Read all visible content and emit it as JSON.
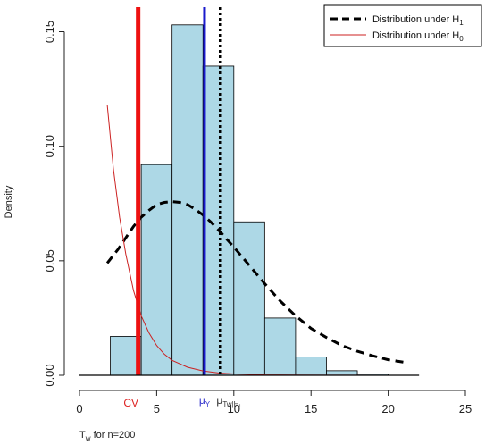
{
  "chart_data": {
    "type": "histogram",
    "xlabel": "T",
    "xlabel_sub": "w",
    "xlabel_rest": " for n=200",
    "ylabel": "Density",
    "xlim": [
      0,
      25
    ],
    "ylim": [
      0,
      0.16
    ],
    "x_ticks": [
      0,
      5,
      10,
      15,
      20,
      25
    ],
    "x_tick_labels": [
      "0",
      "5",
      "10",
      "15",
      "20",
      "25"
    ],
    "y_ticks": [
      0.0,
      0.05,
      0.1,
      0.15
    ],
    "y_tick_labels": [
      "0.00",
      "0.05",
      "0.10",
      "0.15"
    ],
    "histogram": {
      "color": "#add8e6",
      "bins": [
        {
          "x0": 0,
          "x1": 2,
          "density": 0.0
        },
        {
          "x0": 2,
          "x1": 4,
          "density": 0.017
        },
        {
          "x0": 4,
          "x1": 6,
          "density": 0.092
        },
        {
          "x0": 6,
          "x1": 8,
          "density": 0.153
        },
        {
          "x0": 8,
          "x1": 10,
          "density": 0.135
        },
        {
          "x0": 10,
          "x1": 12,
          "density": 0.067
        },
        {
          "x0": 12,
          "x1": 14,
          "density": 0.025
        },
        {
          "x0": 14,
          "x1": 16,
          "density": 0.008
        },
        {
          "x0": 16,
          "x1": 18,
          "density": 0.002
        },
        {
          "x0": 18,
          "x1": 20,
          "density": 0.0005
        },
        {
          "x0": 20,
          "x1": 22,
          "density": 0.0
        }
      ]
    },
    "series": [
      {
        "name": "Distribution under H",
        "name_sub": "1",
        "color": "#000000",
        "style": "dashed",
        "points": [
          [
            1.8,
            0.049
          ],
          [
            2.5,
            0.055
          ],
          [
            3,
            0.06
          ],
          [
            3.5,
            0.065
          ],
          [
            4,
            0.069
          ],
          [
            4.5,
            0.072
          ],
          [
            5,
            0.0745
          ],
          [
            5.5,
            0.0755
          ],
          [
            6,
            0.0758
          ],
          [
            6.5,
            0.0755
          ],
          [
            7,
            0.0745
          ],
          [
            7.5,
            0.0725
          ],
          [
            8,
            0.07
          ],
          [
            8.5,
            0.067
          ],
          [
            9,
            0.0635
          ],
          [
            10,
            0.056
          ],
          [
            11,
            0.048
          ],
          [
            12,
            0.04
          ],
          [
            13,
            0.0325
          ],
          [
            14,
            0.026
          ],
          [
            15,
            0.0205
          ],
          [
            16,
            0.0165
          ],
          [
            17,
            0.013
          ],
          [
            18,
            0.0105
          ],
          [
            19,
            0.0085
          ],
          [
            20,
            0.0068
          ],
          [
            21.2,
            0.0055
          ]
        ]
      },
      {
        "name": "Distribution under H",
        "name_sub": "0",
        "color": "#cc2222",
        "style": "solid",
        "points": [
          [
            1.8,
            0.118
          ],
          [
            2.2,
            0.09
          ],
          [
            2.6,
            0.069
          ],
          [
            3,
            0.053
          ],
          [
            3.5,
            0.037
          ],
          [
            4,
            0.026
          ],
          [
            4.5,
            0.0185
          ],
          [
            5,
            0.013
          ],
          [
            5.5,
            0.0092
          ],
          [
            6,
            0.0065
          ],
          [
            7,
            0.0035
          ],
          [
            8,
            0.0019
          ],
          [
            9,
            0.001
          ],
          [
            10,
            0.0006
          ],
          [
            12,
            0.0002
          ],
          [
            14,
            0.0001
          ],
          [
            16,
            3e-05
          ],
          [
            20,
            0.0
          ]
        ]
      }
    ],
    "vlines": [
      {
        "x": 3.8,
        "color": "#ee1111",
        "style": "solid",
        "label": "CV"
      },
      {
        "x": 8.1,
        "color": "#1a1acc",
        "style": "solid",
        "label": "μ",
        "label_sub": "Y"
      },
      {
        "x": 9.1,
        "color": "#000000",
        "style": "dotted",
        "label": "μ",
        "label_sub": "Tw|H₁"
      }
    ],
    "legend": {
      "position": "top-right",
      "entries": [
        {
          "label": "Distribution under H",
          "sub": "1",
          "color": "#000000",
          "style": "dashed"
        },
        {
          "label": "Distribution under H",
          "sub": "0",
          "color": "#cc2222",
          "style": "solid"
        }
      ]
    }
  }
}
